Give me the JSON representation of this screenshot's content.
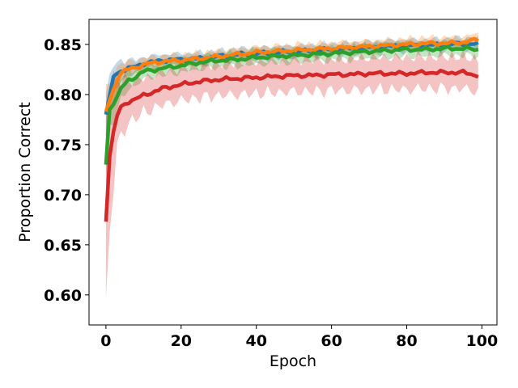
{
  "chart_data": {
    "type": "line",
    "title": "",
    "xlabel": "Epoch",
    "ylabel": "Proportion Correct",
    "xlim": [
      -4.5,
      104
    ],
    "ylim": [
      0.57,
      0.875
    ],
    "xticks": [
      0,
      20,
      40,
      60,
      80,
      100
    ],
    "yticks": [
      0.6,
      0.65,
      0.7,
      0.75,
      0.8,
      0.85
    ],
    "xtick_labels": [
      "0",
      "20",
      "40",
      "60",
      "80",
      "100"
    ],
    "ytick_labels": [
      "0.60",
      "0.65",
      "0.70",
      "0.75",
      "0.80",
      "0.85"
    ],
    "grid": false,
    "legend": "none",
    "series": [
      {
        "color": "#1f77b4",
        "points": [
          [
            0,
            0.78
          ],
          [
            2,
            0.818
          ],
          [
            4,
            0.824
          ],
          [
            6,
            0.826
          ],
          [
            8,
            0.828
          ],
          [
            10,
            0.831
          ],
          [
            15,
            0.834
          ],
          [
            20,
            0.835
          ],
          [
            25,
            0.836
          ],
          [
            30,
            0.838
          ],
          [
            35,
            0.84
          ],
          [
            40,
            0.841
          ],
          [
            45,
            0.842
          ],
          [
            50,
            0.843
          ],
          [
            55,
            0.844
          ],
          [
            60,
            0.845
          ],
          [
            65,
            0.846
          ],
          [
            70,
            0.847
          ],
          [
            75,
            0.848
          ],
          [
            80,
            0.849
          ],
          [
            85,
            0.849
          ],
          [
            90,
            0.85
          ],
          [
            95,
            0.851
          ],
          [
            99,
            0.85
          ]
        ],
        "band": 0.006
      },
      {
        "color": "#ff7f0e",
        "points": [
          [
            0,
            0.783
          ],
          [
            2,
            0.805
          ],
          [
            4,
            0.822
          ],
          [
            6,
            0.825
          ],
          [
            8,
            0.827
          ],
          [
            10,
            0.83
          ],
          [
            15,
            0.833
          ],
          [
            20,
            0.834
          ],
          [
            25,
            0.836
          ],
          [
            30,
            0.838
          ],
          [
            35,
            0.84
          ],
          [
            40,
            0.842
          ],
          [
            45,
            0.843
          ],
          [
            50,
            0.844
          ],
          [
            55,
            0.845
          ],
          [
            60,
            0.846
          ],
          [
            65,
            0.847
          ],
          [
            70,
            0.848
          ],
          [
            75,
            0.849
          ],
          [
            80,
            0.85
          ],
          [
            85,
            0.851
          ],
          [
            90,
            0.851
          ],
          [
            95,
            0.852
          ],
          [
            99,
            0.855
          ]
        ],
        "band": 0.006
      },
      {
        "color": "#2ca02c",
        "points": [
          [
            0,
            0.73
          ],
          [
            1,
            0.785
          ],
          [
            2,
            0.79
          ],
          [
            4,
            0.806
          ],
          [
            6,
            0.814
          ],
          [
            8,
            0.818
          ],
          [
            10,
            0.823
          ],
          [
            15,
            0.826
          ],
          [
            20,
            0.829
          ],
          [
            25,
            0.832
          ],
          [
            30,
            0.834
          ],
          [
            35,
            0.835
          ],
          [
            40,
            0.837
          ],
          [
            45,
            0.838
          ],
          [
            50,
            0.839
          ],
          [
            55,
            0.84
          ],
          [
            60,
            0.841
          ],
          [
            65,
            0.842
          ],
          [
            70,
            0.843
          ],
          [
            75,
            0.844
          ],
          [
            80,
            0.845
          ],
          [
            85,
            0.845
          ],
          [
            90,
            0.846
          ],
          [
            95,
            0.846
          ],
          [
            99,
            0.845
          ]
        ],
        "band": 0.007
      },
      {
        "color": "#d62728",
        "points": [
          [
            0,
            0.673
          ],
          [
            1,
            0.738
          ],
          [
            2,
            0.763
          ],
          [
            3,
            0.779
          ],
          [
            4,
            0.787
          ],
          [
            6,
            0.793
          ],
          [
            8,
            0.796
          ],
          [
            10,
            0.799
          ],
          [
            15,
            0.806
          ],
          [
            20,
            0.81
          ],
          [
            25,
            0.813
          ],
          [
            30,
            0.815
          ],
          [
            35,
            0.816
          ],
          [
            40,
            0.817
          ],
          [
            45,
            0.818
          ],
          [
            50,
            0.819
          ],
          [
            55,
            0.819
          ],
          [
            60,
            0.82
          ],
          [
            65,
            0.82
          ],
          [
            70,
            0.821
          ],
          [
            75,
            0.821
          ],
          [
            80,
            0.821
          ],
          [
            85,
            0.822
          ],
          [
            90,
            0.822
          ],
          [
            95,
            0.822
          ],
          [
            99,
            0.819
          ]
        ],
        "band": 0.016
      }
    ]
  }
}
